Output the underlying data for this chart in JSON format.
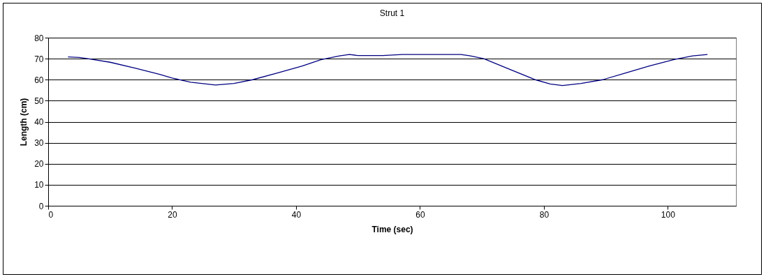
{
  "chart_data": {
    "type": "line",
    "title": "Strut 1",
    "xlabel": "Time (sec)",
    "ylabel": "Length (cm)",
    "xlim": [
      0,
      111
    ],
    "xticks": [
      0,
      20,
      40,
      60,
      80,
      100
    ],
    "ylim": [
      0,
      80
    ],
    "yticks": [
      0,
      10,
      20,
      30,
      40,
      50,
      60,
      70,
      80
    ],
    "grid": "y",
    "series": [
      {
        "color": "#000080",
        "x": [
          3.2,
          5,
          6.4,
          10,
          14,
          18,
          20,
          23,
          27,
          30,
          33,
          37,
          41,
          44,
          47,
          48.6,
          50,
          54,
          57.2,
          62,
          66.6,
          68,
          70.3,
          74,
          78.6,
          81,
          83,
          86,
          89.5,
          93,
          97,
          101,
          104,
          106.4
        ],
        "values": [
          70.8,
          70.6,
          70,
          68.3,
          65.5,
          62.5,
          60.8,
          58.8,
          57.5,
          58.2,
          60,
          63.2,
          66.5,
          69.5,
          71.3,
          72,
          71.5,
          71.5,
          72,
          72,
          72,
          71.4,
          70,
          65.5,
          60,
          58,
          57.2,
          58.2,
          60,
          63,
          66.5,
          69.6,
          71.3,
          72
        ]
      }
    ]
  }
}
